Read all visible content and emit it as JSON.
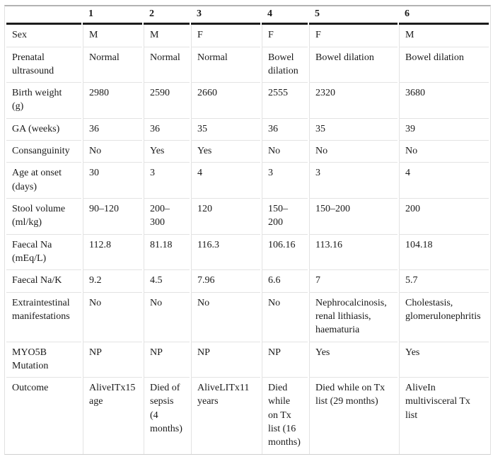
{
  "table": {
    "column_headers": [
      "1",
      "2",
      "3",
      "4",
      "5",
      "6"
    ],
    "rows": [
      {
        "label": "Sex",
        "values": [
          "M",
          "M",
          "F",
          "F",
          "F",
          "M"
        ]
      },
      {
        "label": "Prenatal ultrasound",
        "values": [
          "Normal",
          "Normal",
          "Normal",
          "Bowel dilation",
          "Bowel dilation",
          "Bowel dilation"
        ]
      },
      {
        "label": "Birth weight (g)",
        "values": [
          "2980",
          "2590",
          "2660",
          "2555",
          "2320",
          "3680"
        ]
      },
      {
        "label": "GA (weeks)",
        "values": [
          "36",
          "36",
          "35",
          "36",
          "35",
          "39"
        ]
      },
      {
        "label": "Consanguinity",
        "values": [
          "No",
          "Yes",
          "Yes",
          "No",
          "No",
          "No"
        ]
      },
      {
        "label": "Age at onset (days)",
        "values": [
          "30",
          "3",
          "4",
          "3",
          "3",
          "4"
        ]
      },
      {
        "label": "Stool volume (ml/kg)",
        "values": [
          "90–120",
          "200–300",
          "120",
          "150–200",
          "150–200",
          "200"
        ]
      },
      {
        "label": "Faecal Na (mEq/L)",
        "values": [
          "112.8",
          "81.18",
          "116.3",
          "106.16",
          "113.16",
          "104.18"
        ]
      },
      {
        "label": "Faecal Na/K",
        "values": [
          "9.2",
          "4.5",
          "7.96",
          "6.6",
          "7",
          "5.7"
        ]
      },
      {
        "label": "Extraintestinal manifestations",
        "values": [
          "No",
          "No",
          "No",
          "No",
          "Nephrocalcinosis, renal lithiasis, haematuria",
          "Cholestasis, glomerulonephritis"
        ]
      },
      {
        "label": "MYO5B Mutation",
        "values": [
          "NP",
          "NP",
          "NP",
          "NP",
          "Yes",
          "Yes"
        ]
      },
      {
        "label": "Outcome",
        "values": [
          "AliveITx15 age",
          "Died of sepsis (4 months)",
          "AliveLITx11 years",
          "Died while on Tx list (16 months)",
          "Died while on Tx list (29 months)",
          "AliveIn multivisceral Tx list"
        ]
      }
    ]
  },
  "colors": {
    "header_rule": "#1c1c1c",
    "top_rule": "#b3b3b3",
    "grid_line": "#e3e3e3",
    "outer_border": "#e0e0e0",
    "text": "#1a1a1a",
    "background": "#ffffff"
  }
}
